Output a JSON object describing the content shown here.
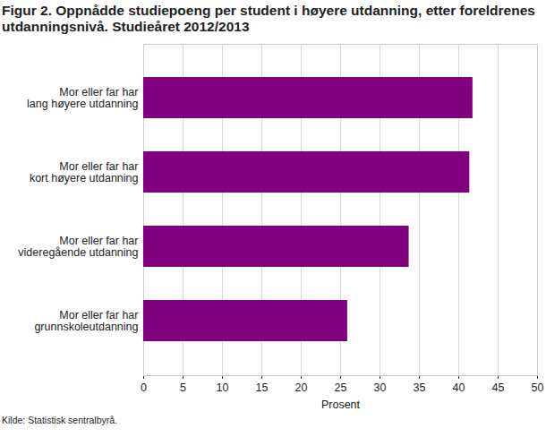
{
  "chart_data": {
    "type": "bar",
    "title": "Figur 2. Oppnådde studiepoeng per student i høyere utdanning, etter foreldrenes utdanningsnivå. Studieåret 2012/2013",
    "categories": [
      "Mor eller far har\nlang høyere utdanning",
      "Mor eller far har\nkort høyere utdanning",
      "Mor eller far har\nvideregående utdanning",
      "Mor eller far har\ngrunnskoleutdanning"
    ],
    "values": [
      41.8,
      41.4,
      33.7,
      25.9
    ],
    "color": "#800080",
    "orientation": "horizontal",
    "x_label": "Prosent",
    "xlim": [
      0,
      50
    ],
    "xticks": [
      0,
      5,
      10,
      15,
      20,
      25,
      30,
      35,
      40,
      45,
      50
    ],
    "grid": true,
    "source": "Kilde: Statistisk sentralbyrå."
  }
}
